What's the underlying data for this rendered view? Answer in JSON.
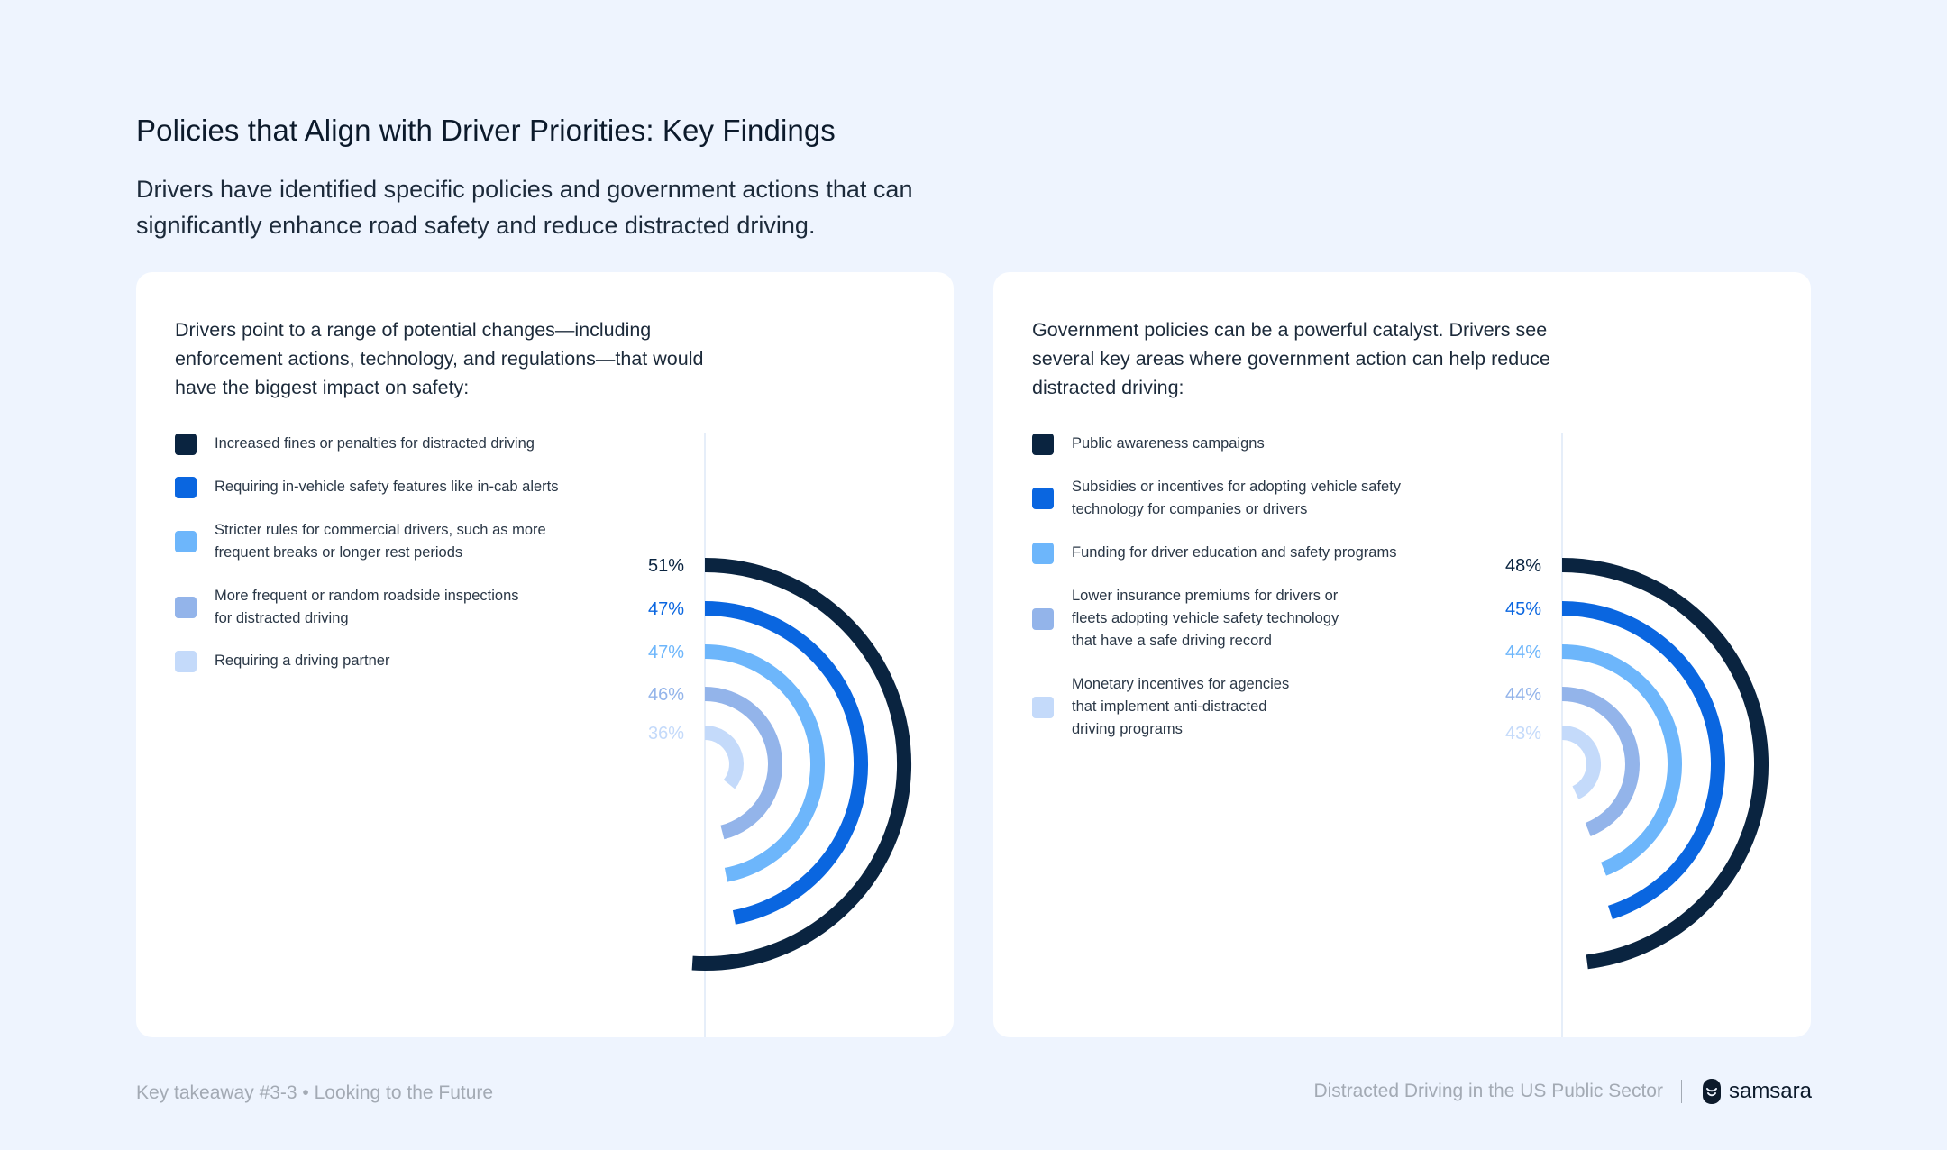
{
  "page": {
    "title": "Policies that Align with Driver Priorities: Key Findings",
    "subtitle": "Drivers have identified specific policies and government actions that can significantly enhance road safety and reduce distracted driving."
  },
  "colors": [
    "#0a2440",
    "#0a66e0",
    "#6db6fb",
    "#93b4ea",
    "#c4dafa"
  ],
  "chart_data": [
    {
      "type": "radial-bar",
      "intro": "Drivers point to a range of potential changes—including enforcement actions, technology, and regulations—that would have the biggest impact on safety:",
      "categories": [
        "Increased fines or penalties for distracted driving",
        "Requiring in-vehicle safety features like in-cab alerts",
        "Stricter rules for commercial drivers, such as more\nfrequent breaks or longer rest periods",
        "More frequent or random roadside inspections\nfor distracted driving",
        "Requiring a driving partner"
      ],
      "values": [
        51,
        47,
        47,
        46,
        36
      ],
      "labels": [
        "51%",
        "47%",
        "47%",
        "46%",
        "36%"
      ]
    },
    {
      "type": "radial-bar",
      "intro": "Government policies can be a powerful catalyst. Drivers see several key areas where government action can help reduce distracted driving:",
      "categories": [
        "Public awareness campaigns",
        "Subsidies or incentives for adopting vehicle safety\ntechnology for companies or drivers",
        "Funding for driver education and safety programs",
        "Lower insurance premiums for drivers or\nfleets adopting vehicle safety technology\nthat have a safe driving record",
        "Monetary incentives for agencies\nthat implement anti-distracted\ndriving programs"
      ],
      "values": [
        48,
        45,
        44,
        44,
        43
      ],
      "labels": [
        "48%",
        "45%",
        "44%",
        "44%",
        "43%"
      ]
    }
  ],
  "footer": {
    "takeaway": "Key takeaway #3-3 • Looking to the Future",
    "document": "Distracted Driving in the US Public Sector",
    "brand": "samsara"
  }
}
